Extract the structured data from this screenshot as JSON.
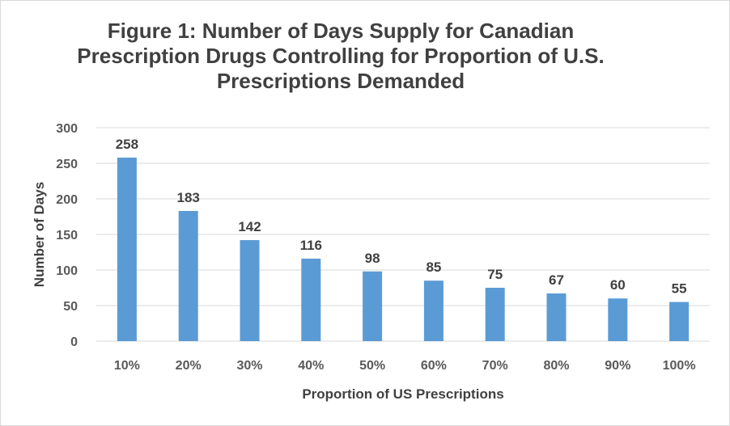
{
  "chart_data": {
    "type": "bar",
    "title_lines": [
      "Figure 1: Number of Days Supply for Canadian",
      "Prescription Drugs Controlling for Proportion of U.S.",
      "Prescriptions Demanded"
    ],
    "categories": [
      "10%",
      "20%",
      "30%",
      "40%",
      "50%",
      "60%",
      "70%",
      "80%",
      "90%",
      "100%"
    ],
    "values": [
      258,
      183,
      142,
      116,
      98,
      85,
      75,
      67,
      60,
      55
    ],
    "xlabel": "Proportion of US Prescriptions",
    "ylabel": "Number of Days",
    "ylim": [
      0,
      300
    ],
    "yticks": [
      0,
      50,
      100,
      150,
      200,
      250,
      300
    ],
    "grid": true,
    "legend": "none",
    "bar_color": "#5b9bd5",
    "grid_color": "#d9d9d9"
  }
}
